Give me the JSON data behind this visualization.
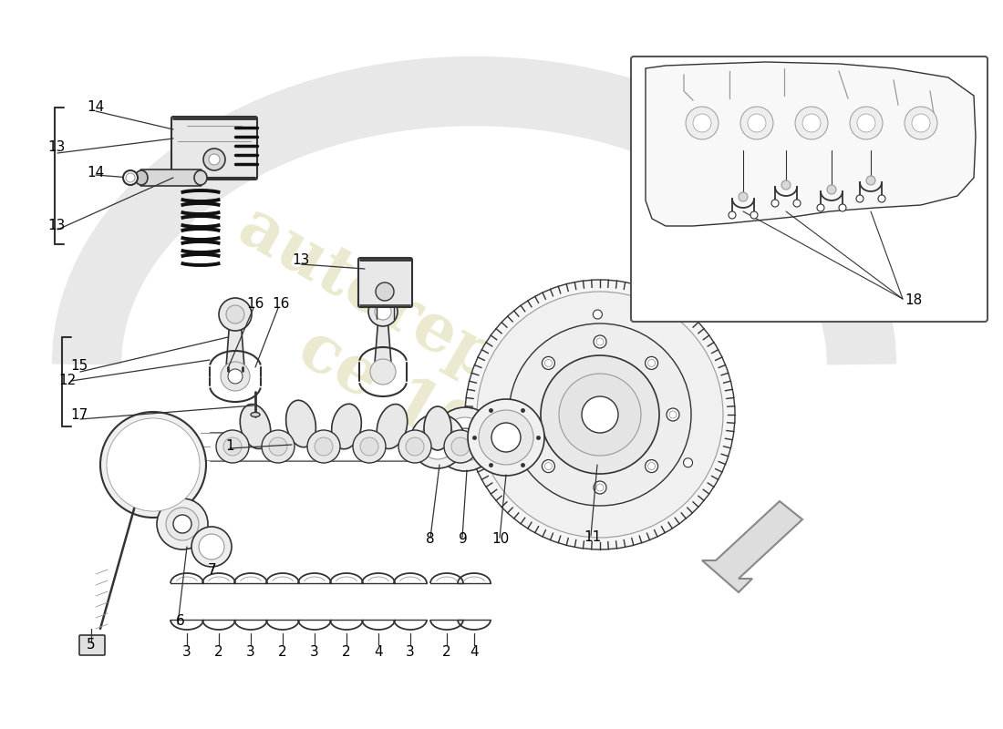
{
  "bg_color": "#ffffff",
  "line_color": "#333333",
  "light_gray": "#cccccc",
  "medium_gray": "#999999",
  "dark_gray": "#555555",
  "watermark_color": "#d4d4a0",
  "arrow_color": "#888888",
  "inset_border_color": "#555555"
}
